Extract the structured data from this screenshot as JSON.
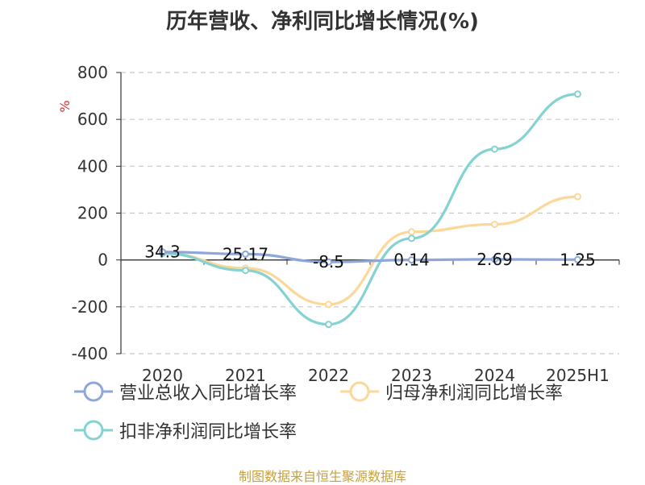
{
  "title": "历年营收、净利同比增长情况(%)",
  "source": "制图数据来自恒生聚源数据库",
  "chart_data": {
    "type": "line",
    "title": "历年营收、净利同比增长情况(%)",
    "ylabel": "%",
    "categories": [
      "2020",
      "2021",
      "2022",
      "2023",
      "2024",
      "2025H1"
    ],
    "ylim": [
      -400,
      800
    ],
    "yticks": [
      -400,
      -200,
      0,
      200,
      400,
      600,
      800
    ],
    "grid": true,
    "legend_position": "bottom",
    "series": [
      {
        "name": "营业总收入同比增长率",
        "color": "#8ea6d8",
        "values": [
          34.3,
          25.17,
          -8.5,
          0.14,
          2.69,
          1.25
        ],
        "labels": [
          "34.3",
          "25.17",
          "-8.5",
          "0.14",
          "2.69",
          "1.25"
        ]
      },
      {
        "name": "归母净利润同比增长率",
        "color": "#fbd89a",
        "values": [
          30,
          -35,
          -190,
          120,
          152,
          270
        ]
      },
      {
        "name": "扣非净利润同比增长率",
        "color": "#85d2d2",
        "values": [
          28,
          -45,
          -275,
          92,
          473,
          708
        ]
      }
    ]
  }
}
